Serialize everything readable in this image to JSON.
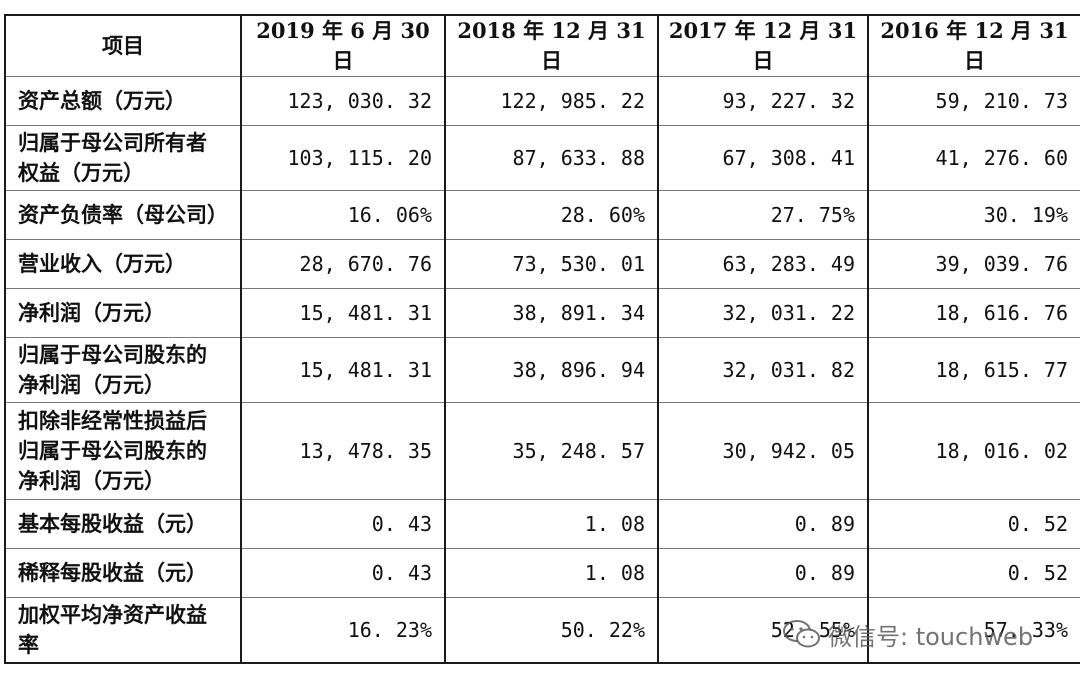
{
  "table": {
    "headers": [
      "项目",
      "2019 年 6 月 30 日",
      "2018 年 12 月 31 日",
      "2017 年 12 月 31 日",
      "2016 年 12 月 31 日"
    ],
    "rows": [
      {
        "label": [
          "资产总额（万元）"
        ],
        "values": [
          "123, 030. 32",
          "122, 985. 22",
          "93, 227. 32",
          "59, 210. 73"
        ]
      },
      {
        "label": [
          "归属于母公司所有者",
          "权益（万元）"
        ],
        "values": [
          "103, 115. 20",
          "87, 633. 88",
          "67, 308. 41",
          "41, 276. 60"
        ]
      },
      {
        "label": [
          "资产负债率（母公司）"
        ],
        "values": [
          "16. 06%",
          "28. 60%",
          "27. 75%",
          "30. 19%"
        ]
      },
      {
        "label": [
          "营业收入（万元）"
        ],
        "values": [
          "28, 670. 76",
          "73, 530. 01",
          "63, 283. 49",
          "39, 039. 76"
        ]
      },
      {
        "label": [
          "净利润（万元）"
        ],
        "values": [
          "15, 481. 31",
          "38, 891. 34",
          "32, 031. 22",
          "18, 616. 76"
        ]
      },
      {
        "label": [
          "归属于母公司股东的",
          "净利润（万元）"
        ],
        "values": [
          "15, 481. 31",
          "38, 896. 94",
          "32, 031. 82",
          "18, 615. 77"
        ]
      },
      {
        "label": [
          "扣除非经常性损益后",
          "归属于母公司股东的",
          "净利润（万元）"
        ],
        "values": [
          "13, 478. 35",
          "35, 248. 57",
          "30, 942. 05",
          "18, 016. 02"
        ]
      },
      {
        "label": [
          "基本每股收益（元）"
        ],
        "values": [
          "0. 43",
          "1. 08",
          "0. 89",
          "0. 52"
        ]
      },
      {
        "label": [
          "稀释每股收益（元）"
        ],
        "values": [
          "0. 43",
          "1. 08",
          "0. 89",
          "0. 52"
        ]
      },
      {
        "label": [
          "加权平均净资产收益",
          "率"
        ],
        "values": [
          "16. 23%",
          "50. 22%",
          "52. 55%",
          "57. 33%"
        ]
      }
    ]
  },
  "watermark": {
    "text": "微信号: touchweb",
    "icon": "wechat-icon"
  }
}
